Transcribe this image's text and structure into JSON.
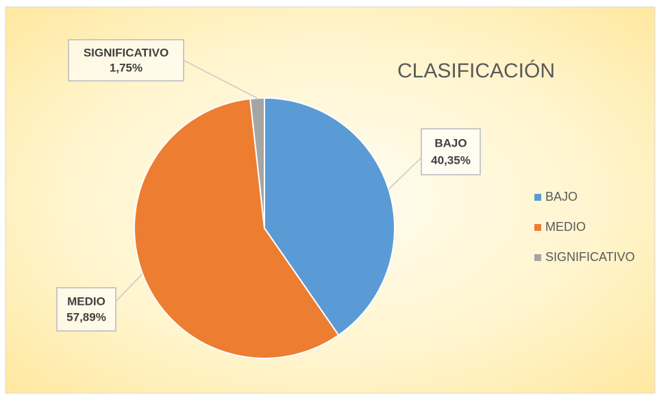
{
  "chart_data": {
    "type": "pie",
    "title": "CLASIFICACIÓN",
    "categories": [
      "BAJO",
      "MEDIO",
      "SIGNIFICATIVO"
    ],
    "values": [
      40.35,
      57.89,
      1.75
    ],
    "value_labels": [
      "40,35%",
      "57,89%",
      "1,75%"
    ],
    "colors": [
      "#5b9bd5",
      "#ed7d31",
      "#a5a5a5"
    ],
    "legend": "right"
  }
}
